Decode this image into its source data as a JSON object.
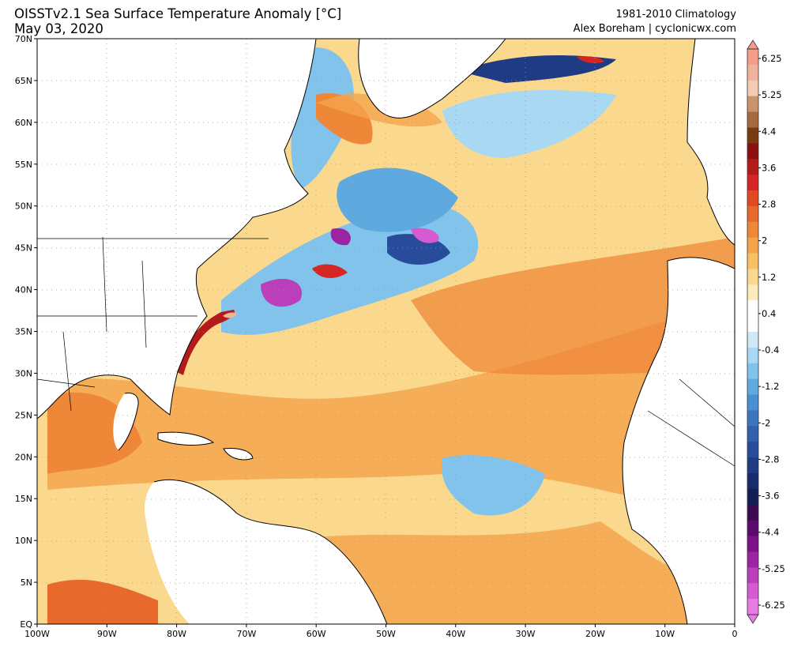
{
  "header": {
    "title": "OISSTv2.1 Sea Surface Temperature Anomaly [°C]",
    "date": "May 03, 2020",
    "climatology": "1981-2010 Climatology",
    "credit": "Alex Boreham | cyclonicwx.com"
  },
  "map": {
    "lat_labels": [
      "70N",
      "65N",
      "60N",
      "55N",
      "50N",
      "45N",
      "40N",
      "35N",
      "30N",
      "25N",
      "20N",
      "15N",
      "10N",
      "5N",
      "EQ"
    ],
    "lon_labels": [
      "100W",
      "90W",
      "80W",
      "70W",
      "60W",
      "50W",
      "40W",
      "30W",
      "20W",
      "10W",
      "0"
    ],
    "extent": {
      "lon_min": -100,
      "lon_max": 0,
      "lat_min": 0,
      "lat_max": 70
    }
  },
  "colorbar": {
    "labels": [
      "6.25",
      "5.25",
      "4.4",
      "3.6",
      "2.8",
      "2",
      "1.2",
      "0.4",
      "-0.4",
      "-1.2",
      "-2",
      "-2.8",
      "-3.6",
      "-4.4",
      "-5.25",
      "-6.25"
    ],
    "colors": [
      "#f79b8a",
      "#f2b39c",
      "#f2cbb3",
      "#c9936b",
      "#a56a3e",
      "#7a3a12",
      "#8c1010",
      "#b31b1b",
      "#d62525",
      "#e04a21",
      "#e8692c",
      "#ef8738",
      "#f5a44d",
      "#f8c065",
      "#fad98e",
      "#fdebbb",
      "#ffffff",
      "#ffffff",
      "#cfe9f7",
      "#a9d8f2",
      "#82c3eb",
      "#5ea9de",
      "#4a8fd0",
      "#3d75bf",
      "#3160ad",
      "#284c99",
      "#1f3b83",
      "#172c6b",
      "#121f55",
      "#3b0a4f",
      "#5c0a6e",
      "#7c138a",
      "#9c24a3",
      "#bb3ebb",
      "#d65bd2",
      "#ea7be4"
    ]
  }
}
